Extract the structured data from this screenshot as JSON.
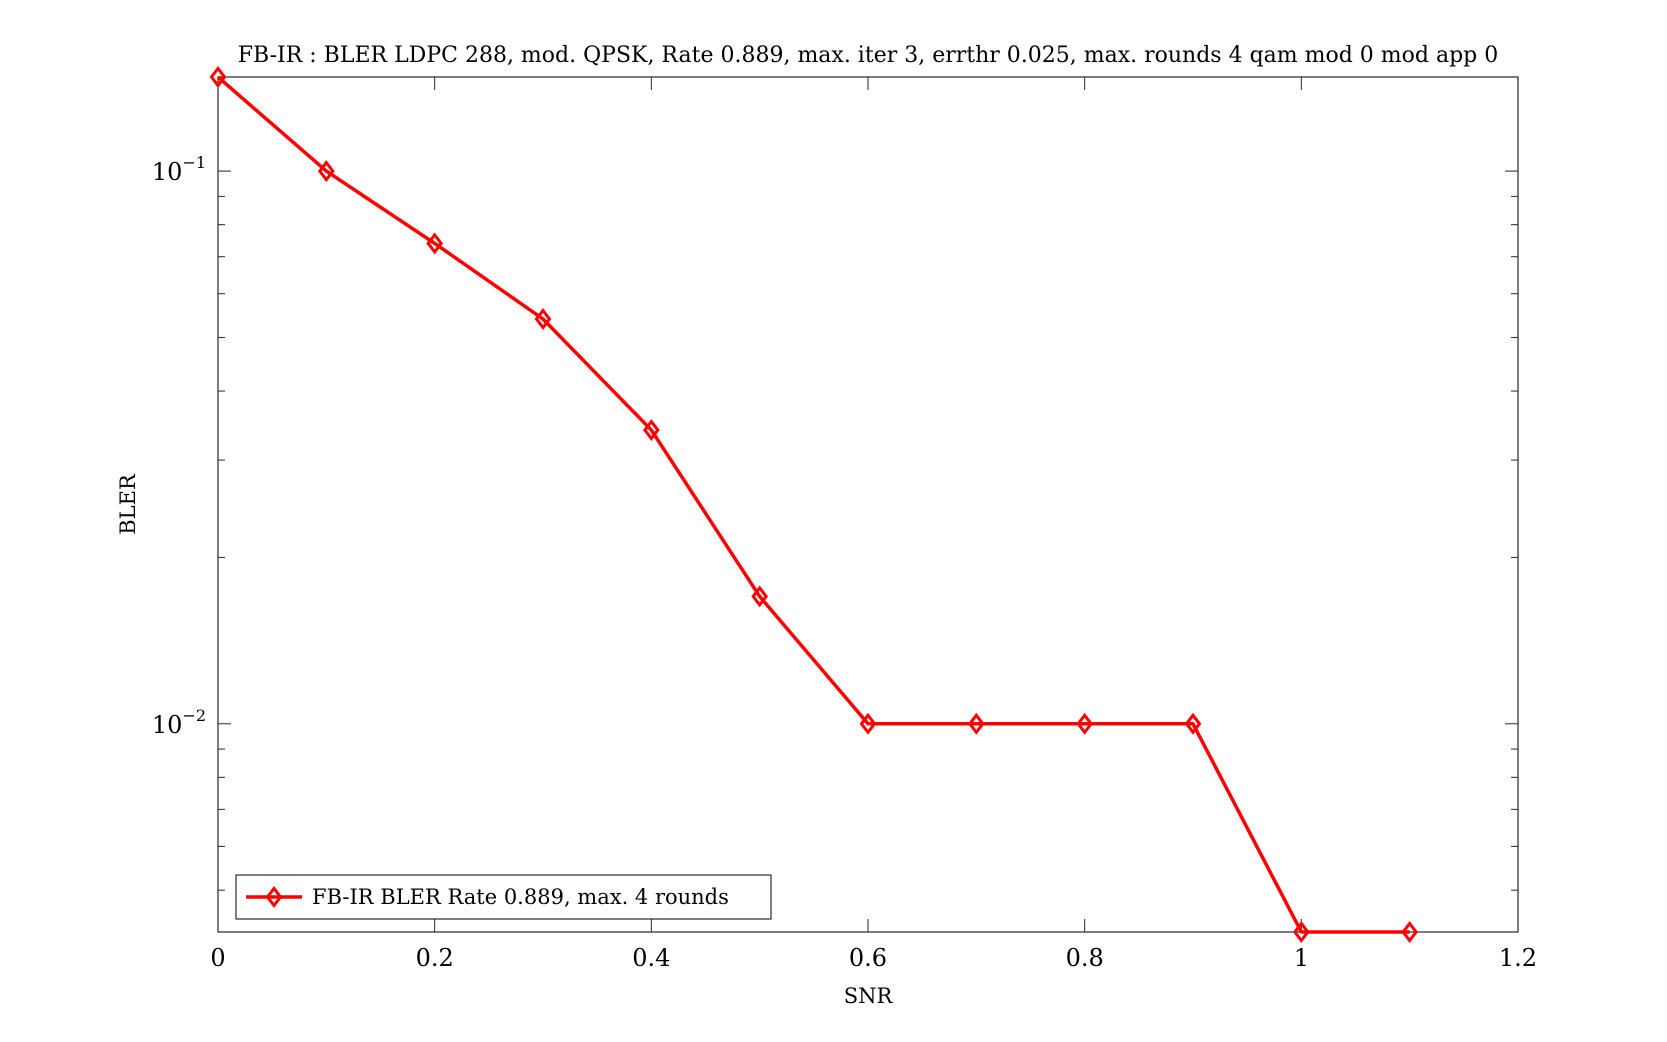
{
  "chart_data": {
    "type": "line",
    "title": "FB-IR : BLER LDPC 288, mod. QPSK, Rate 0.889, max. iter 3, errthr 0.025, max. rounds 4 qam mod 0 mod app 0",
    "xlabel": "SNR",
    "ylabel": "BLER",
    "xlim": [
      0,
      1.2
    ],
    "ylim": [
      0.0042,
      0.148
    ],
    "yscale": "log",
    "grid": false,
    "legend_position": "bottom-left",
    "xticks": [
      0,
      0.2,
      0.4,
      0.6,
      0.8,
      1,
      1.2
    ],
    "xtick_labels": [
      "0",
      "0.2",
      "0.4",
      "0.6",
      "0.8",
      "1",
      "1.2"
    ],
    "yticks": [
      {
        "value": 0.1,
        "base": "10",
        "exp": "−1"
      },
      {
        "value": 0.01,
        "base": "10",
        "exp": "−2"
      }
    ],
    "series": [
      {
        "name": "FB-IR BLER Rate 0.889, max. 4 rounds",
        "color": "#ff0000",
        "marker": "diamond",
        "x": [
          0,
          0.1,
          0.2,
          0.3,
          0.4,
          0.5,
          0.6,
          0.7,
          0.8,
          0.9,
          1.0,
          1.1
        ],
        "y": [
          0.148,
          0.1,
          0.074,
          0.054,
          0.034,
          0.017,
          0.01,
          0.01,
          0.01,
          0.01,
          0.0042,
          0.0042
        ]
      }
    ]
  }
}
